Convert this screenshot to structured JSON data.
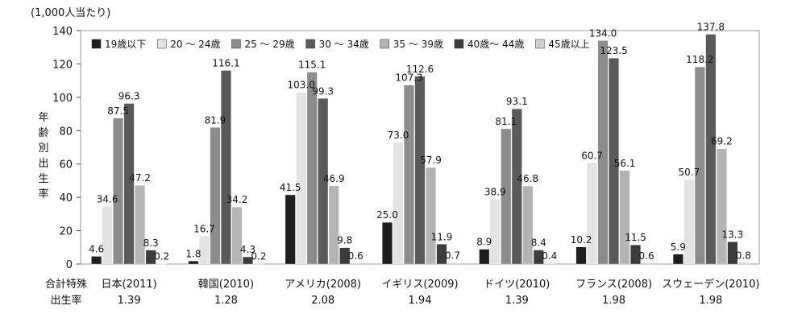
{
  "chart_data": {
    "type": "bar",
    "unit_label": "(1,000人当たり)",
    "ylabel": "年齢別出生率",
    "ylim": [
      0,
      140
    ],
    "y_ticks": [
      0,
      20,
      40,
      60,
      80,
      100,
      120,
      140
    ],
    "grid": false,
    "legend_position": "top",
    "categories": [
      "日本(2011)",
      "韓国(2010)",
      "アメリカ(2008)",
      "イギリス(2009)",
      "ドイツ(2010)",
      "フランス(2008)",
      "スウェーデン(2010)"
    ],
    "series": [
      {
        "name": "19歳以下",
        "color": "#1e1e1e",
        "values": [
          4.6,
          1.8,
          41.5,
          25.0,
          8.9,
          10.2,
          5.9
        ]
      },
      {
        "name": "20 ～ 24歳",
        "color": "#e3e3e3",
        "values": [
          34.6,
          16.7,
          103.0,
          73.0,
          38.9,
          60.7,
          50.7
        ]
      },
      {
        "name": "25 ～ 29歳",
        "color": "#8c8c8c",
        "values": [
          87.5,
          81.9,
          115.1,
          107.3,
          81.1,
          134.0,
          118.2
        ]
      },
      {
        "name": "30 ～ 34歳",
        "color": "#5a5a5a",
        "values": [
          96.3,
          116.1,
          99.3,
          112.6,
          93.1,
          123.5,
          137.8
        ]
      },
      {
        "name": "35 ～ 39歳",
        "color": "#b4b4b4",
        "values": [
          47.2,
          34.2,
          46.9,
          57.9,
          46.8,
          56.1,
          69.2
        ]
      },
      {
        "name": "40歳～ 44歳",
        "color": "#3c3c3c",
        "values": [
          8.3,
          4.3,
          9.8,
          11.9,
          8.4,
          11.5,
          13.3
        ]
      },
      {
        "name": "45歳以上",
        "color": "#cfcfcf",
        "values": [
          0.2,
          0.2,
          0.6,
          0.7,
          0.4,
          0.6,
          0.8
        ]
      }
    ],
    "data_labels": [
      [
        "4.6",
        "1.8",
        "41.5",
        "25.0",
        "8.9",
        "10.2",
        "5.9"
      ],
      [
        "34.6",
        "16.7",
        "103.0",
        "73.0",
        "38.9",
        "60.7",
        "50.7"
      ],
      [
        "87.5",
        "81.9",
        "115.1",
        "107.3",
        "81.1",
        "134.0",
        "118.2"
      ],
      [
        "96.3",
        "116.1",
        "99.3",
        "112.6",
        "93.1",
        "123.5",
        "137.8"
      ],
      [
        "47.2",
        "34.2",
        "46.9",
        "57.9",
        "46.8",
        "56.1",
        "69.2"
      ],
      [
        "8.3",
        "4.3",
        "9.8",
        "11.9",
        "8.4",
        "11.5",
        "13.3"
      ],
      [
        "0.2",
        "0.2",
        "0.6",
        "0.7",
        "0.4",
        "0.6",
        "0.8"
      ]
    ],
    "tfr_label_line1": "合計特殊",
    "tfr_label_line2": "出生率",
    "tfr_values": [
      "1.39",
      "1.28",
      "2.08",
      "1.94",
      "1.39",
      "1.98",
      "1.98"
    ]
  }
}
